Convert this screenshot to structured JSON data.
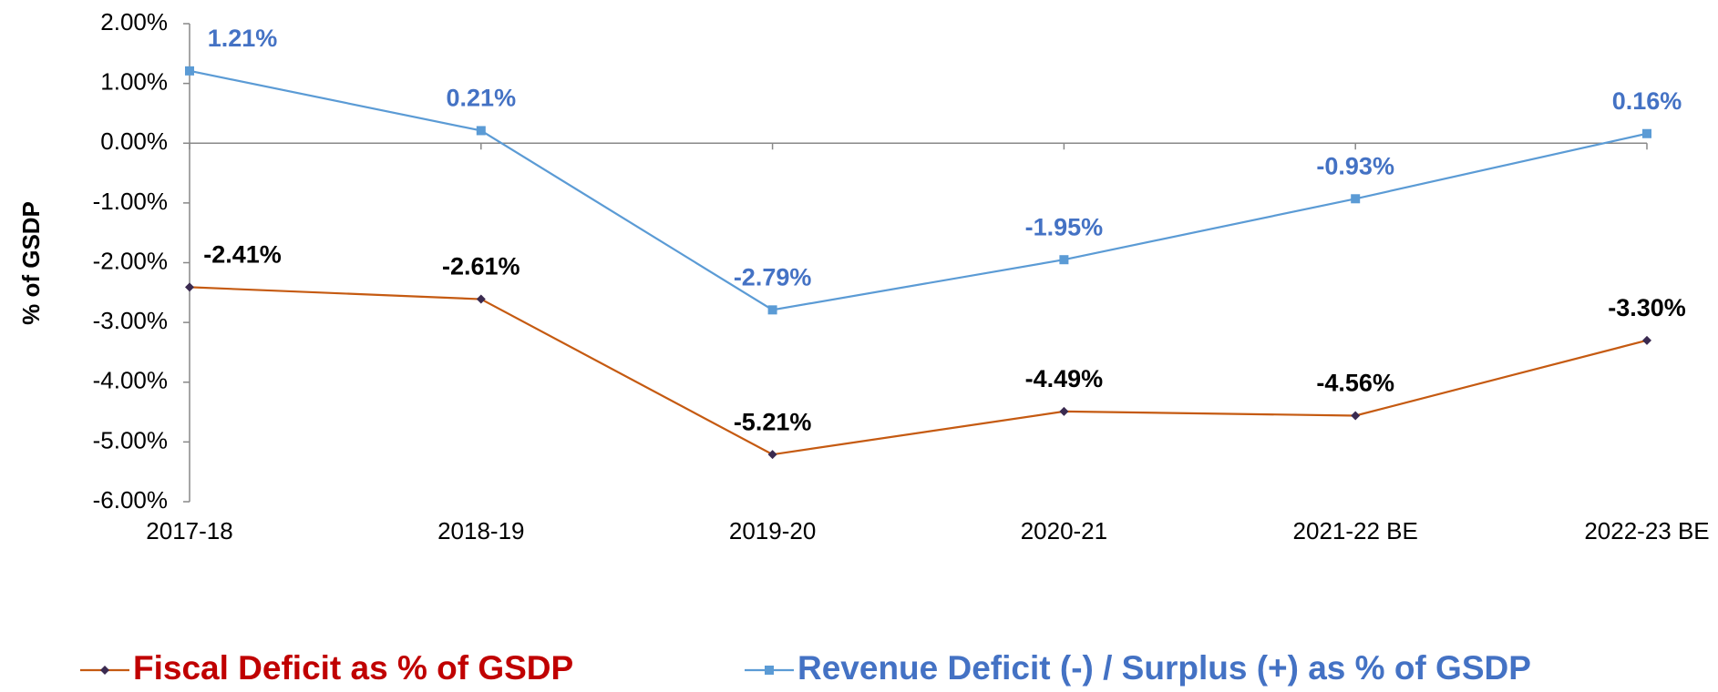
{
  "chart_data": {
    "type": "line",
    "categories": [
      "2017-18",
      "2018-19",
      "2019-20",
      "2020-21",
      "2021-22 BE",
      "2022-23 BE"
    ],
    "series": [
      {
        "name": "Fiscal Deficit as % of GSDP",
        "color": "#c55a11",
        "marker_color": "#3a2a50",
        "legend_text_color": "#c00000",
        "values": [
          -2.41,
          -2.61,
          -5.21,
          -4.49,
          -4.56,
          -3.3
        ],
        "value_labels": [
          "-2.41%",
          "-2.61%",
          "-5.21%",
          "-4.49%",
          "-4.56%",
          "-3.30%"
        ],
        "label_color": "#000000"
      },
      {
        "name": "Revenue Deficit (-) / Surplus (+) as % of GSDP",
        "color": "#5b9bd5",
        "marker_color": "#5b9bd5",
        "legend_text_color": "#4472c4",
        "values": [
          1.21,
          0.21,
          -2.79,
          -1.95,
          -0.93,
          0.16
        ],
        "value_labels": [
          "1.21%",
          "0.21%",
          "-2.79%",
          "-1.95%",
          "-0.93%",
          "0.16%"
        ],
        "label_color": "#4472c4"
      }
    ],
    "y_label": "% of GSDP",
    "ylim": [
      -6,
      2
    ],
    "yticks": [
      {
        "value": -6,
        "label": "-6.00%"
      },
      {
        "value": -5,
        "label": "-5.00%"
      },
      {
        "value": -4,
        "label": "-4.00%"
      },
      {
        "value": -3,
        "label": "-3.00%"
      },
      {
        "value": -2,
        "label": "-2.00%"
      },
      {
        "value": -1,
        "label": "-1.00%"
      },
      {
        "value": 0,
        "label": "0.00%"
      },
      {
        "value": 1,
        "label": "1.00%"
      },
      {
        "value": 2,
        "label": "2.00%"
      }
    ],
    "grid": false,
    "legend": "bottom"
  }
}
